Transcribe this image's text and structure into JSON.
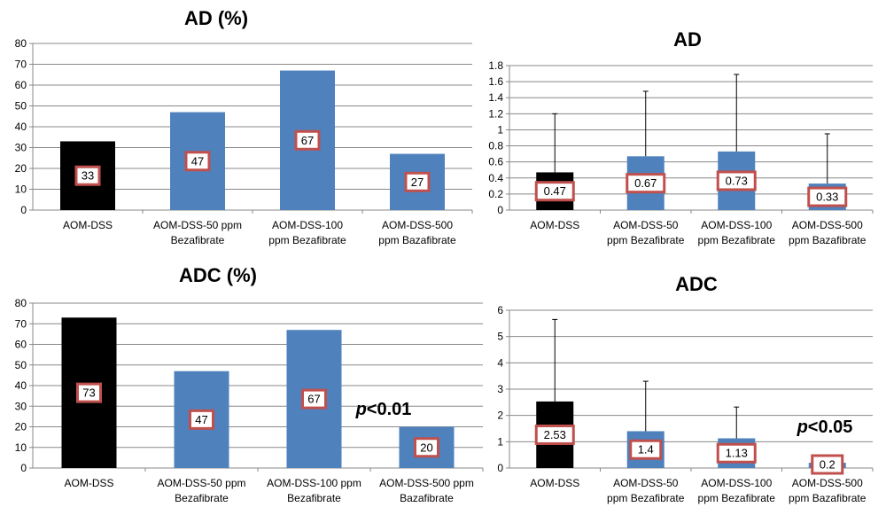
{
  "colors": {
    "control": "#000000",
    "treatment": "#4F81BD",
    "label_border": "#C0504D",
    "grid": "#888888"
  },
  "chart_data": [
    {
      "type": "bar",
      "title": "AD (%)",
      "categories": [
        [
          "AOM-DSS"
        ],
        [
          "AOM-DSS-50 ppm",
          "Bezafibrate"
        ],
        [
          "AOM-DSS-100",
          "ppm Bezafibrate"
        ],
        [
          "AOM-DSS-500",
          "ppm Bazafibrate"
        ]
      ],
      "values": [
        33,
        47,
        67,
        27
      ],
      "value_labels": [
        "33",
        "47",
        "67",
        "27"
      ],
      "ylim": [
        0,
        80
      ],
      "ytick_step": 10,
      "yticks": [
        "0",
        "10",
        "20",
        "30",
        "40",
        "50",
        "60",
        "70",
        "80"
      ],
      "grid": true,
      "annotation": ""
    },
    {
      "type": "bar",
      "title": "AD",
      "categories": [
        [
          "AOM-DSS"
        ],
        [
          "AOM-DSS-50",
          "ppm Bezafibrate"
        ],
        [
          "AOM-DSS-100",
          "ppm Bezafibrate"
        ],
        [
          "AOM-DSS-500",
          "ppm Bazafibrate"
        ]
      ],
      "values": [
        0.47,
        0.67,
        0.73,
        0.33
      ],
      "value_labels": [
        "0.47",
        "0.67",
        "0.73",
        "0.33"
      ],
      "error_upper": [
        1.2,
        1.48,
        1.69,
        0.95
      ],
      "ylim": [
        0,
        1.8
      ],
      "ytick_step": 0.2,
      "yticks": [
        "0",
        "0.2",
        "0.4",
        "0.6",
        "0.8",
        "1",
        "1.2",
        "1.4",
        "1.6",
        "1.8"
      ],
      "grid": true,
      "annotation": ""
    },
    {
      "type": "bar",
      "title": "ADC (%)",
      "categories": [
        [
          "AOM-DSS"
        ],
        [
          "AOM-DSS-50 ppm",
          "Bezafibrate"
        ],
        [
          "AOM-DSS-100 ppm",
          "Bezafibrate"
        ],
        [
          "AOM-DSS-500 ppm",
          "Bazafibrate"
        ]
      ],
      "values": [
        73,
        47,
        67,
        20
      ],
      "value_labels": [
        "73",
        "47",
        "67",
        "20"
      ],
      "ylim": [
        0,
        80
      ],
      "ytick_step": 10,
      "yticks": [
        "0",
        "10",
        "20",
        "30",
        "40",
        "50",
        "60",
        "70",
        "80"
      ],
      "grid": true,
      "annotation": "p<0.01"
    },
    {
      "type": "bar",
      "title": "ADC",
      "categories": [
        [
          "AOM-DSS"
        ],
        [
          "AOM-DSS-50",
          "ppm Bezafibrate"
        ],
        [
          "AOM-DSS-100",
          "ppm Bezafibrate"
        ],
        [
          "AOM-DSS-500",
          "ppm Bazafibrate"
        ]
      ],
      "values": [
        2.53,
        1.4,
        1.13,
        0.2
      ],
      "value_labels": [
        "2.53",
        "1.4",
        "1.13",
        "0.2"
      ],
      "error_upper": [
        5.65,
        3.3,
        2.32,
        null
      ],
      "ylim": [
        0,
        6
      ],
      "ytick_step": 1,
      "yticks": [
        "0",
        "1",
        "2",
        "3",
        "4",
        "5",
        "6"
      ],
      "grid": true,
      "annotation": "p<0.05"
    }
  ]
}
